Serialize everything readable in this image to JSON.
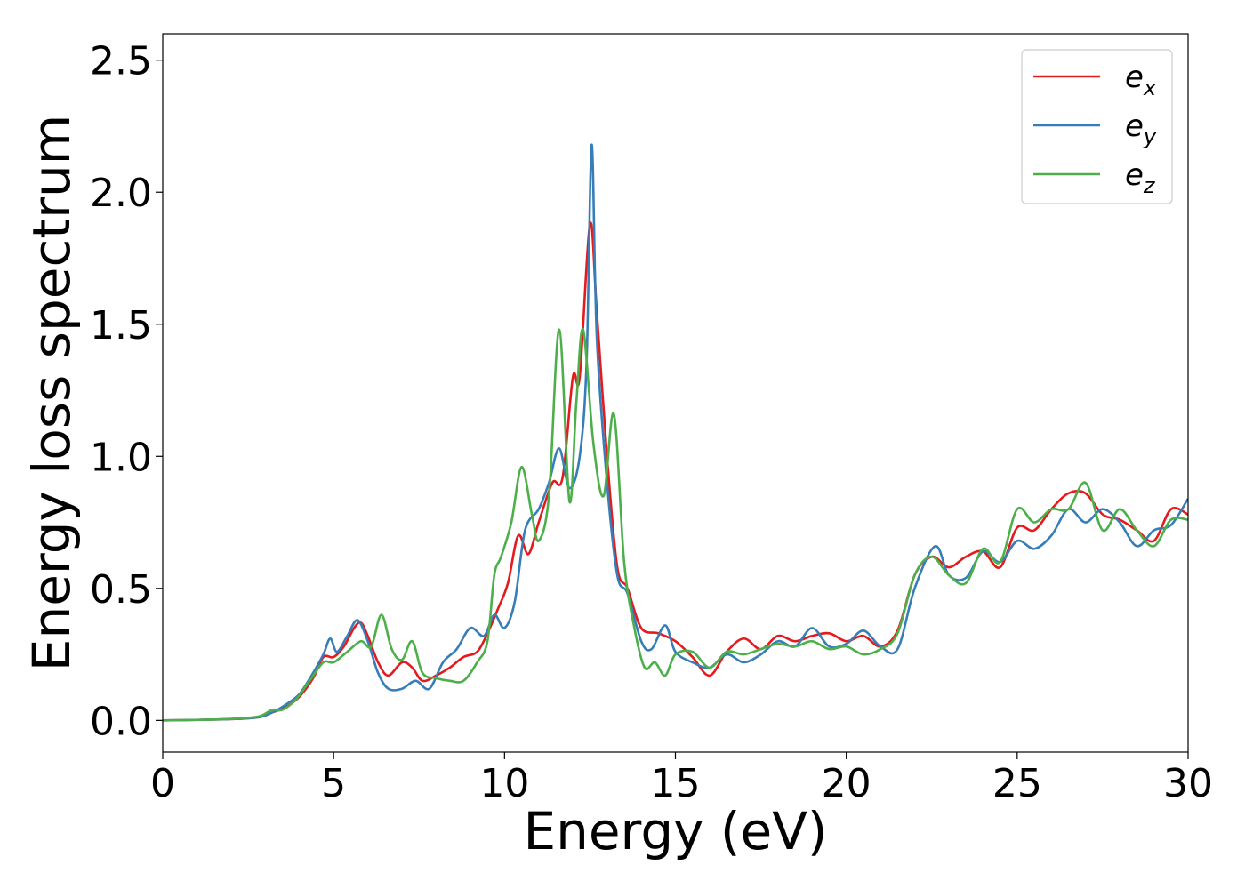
{
  "chart_data": {
    "type": "line",
    "title": "",
    "xlabel": "Energy (eV)",
    "ylabel": "Energy loss spectrum",
    "xlim": [
      0,
      30
    ],
    "ylim": [
      -0.12,
      2.6
    ],
    "xticks": [
      "0",
      "5",
      "10",
      "15",
      "20",
      "25",
      "30"
    ],
    "yticks": [
      "0.0",
      "0.5",
      "1.0",
      "1.5",
      "2.0",
      "2.5"
    ],
    "grid": false,
    "legend_position": "top-right",
    "series": [
      {
        "name_main": "e",
        "name_sub": "x",
        "color": "#e41a1c",
        "x": [
          0,
          1,
          2,
          2.8,
          3.2,
          3.6,
          4.0,
          4.4,
          4.7,
          5.0,
          5.3,
          5.6,
          5.8,
          6.0,
          6.3,
          6.6,
          7.0,
          7.3,
          7.6,
          8.0,
          8.4,
          8.8,
          9.2,
          9.5,
          9.8,
          10.1,
          10.4,
          10.7,
          11.0,
          11.4,
          11.7,
          12.0,
          12.2,
          12.5,
          12.7,
          13.0,
          13.3,
          13.6,
          14.0,
          14.5,
          15.0,
          15.5,
          16.0,
          16.5,
          17.0,
          17.5,
          18.0,
          18.5,
          19.0,
          19.5,
          20.0,
          20.5,
          21.0,
          21.5,
          22.0,
          22.5,
          23.0,
          23.5,
          24.0,
          24.5,
          25.0,
          25.5,
          26.0,
          26.5,
          27.0,
          27.5,
          28.0,
          28.5,
          29.0,
          29.5,
          30.0
        ],
        "y": [
          0,
          0.002,
          0.005,
          0.012,
          0.03,
          0.05,
          0.09,
          0.16,
          0.24,
          0.24,
          0.28,
          0.35,
          0.37,
          0.32,
          0.22,
          0.17,
          0.22,
          0.2,
          0.15,
          0.17,
          0.2,
          0.24,
          0.26,
          0.33,
          0.42,
          0.52,
          0.7,
          0.63,
          0.75,
          0.9,
          0.92,
          1.3,
          1.3,
          1.88,
          1.55,
          1.0,
          0.58,
          0.5,
          0.35,
          0.33,
          0.3,
          0.24,
          0.17,
          0.26,
          0.31,
          0.27,
          0.32,
          0.3,
          0.32,
          0.33,
          0.3,
          0.32,
          0.28,
          0.34,
          0.55,
          0.62,
          0.58,
          0.62,
          0.64,
          0.58,
          0.73,
          0.72,
          0.8,
          0.86,
          0.86,
          0.78,
          0.76,
          0.72,
          0.68,
          0.8,
          0.78
        ]
      },
      {
        "name_main": "e",
        "name_sub": "y",
        "color": "#377eb8",
        "x": [
          0,
          1,
          2,
          2.8,
          3.2,
          3.6,
          4.0,
          4.4,
          4.7,
          4.9,
          5.1,
          5.4,
          5.7,
          6.0,
          6.3,
          6.6,
          7.0,
          7.4,
          7.8,
          8.2,
          8.6,
          9.0,
          9.4,
          9.7,
          10.0,
          10.3,
          10.6,
          11.0,
          11.3,
          11.6,
          11.9,
          12.2,
          12.4,
          12.55,
          12.7,
          13.0,
          13.3,
          13.6,
          14.0,
          14.3,
          14.7,
          15.0,
          15.5,
          16.0,
          16.5,
          17.0,
          17.5,
          18.0,
          18.5,
          19.0,
          19.5,
          20.0,
          20.5,
          21.0,
          21.5,
          22.0,
          22.6,
          23.0,
          23.5,
          24.0,
          24.5,
          25.0,
          25.5,
          26.0,
          26.5,
          27.0,
          27.5,
          28.0,
          28.5,
          29.0,
          29.5,
          30.0
        ],
        "y": [
          0,
          0.002,
          0.005,
          0.012,
          0.03,
          0.06,
          0.1,
          0.18,
          0.25,
          0.31,
          0.26,
          0.32,
          0.38,
          0.3,
          0.18,
          0.12,
          0.12,
          0.15,
          0.12,
          0.22,
          0.27,
          0.35,
          0.32,
          0.4,
          0.35,
          0.45,
          0.72,
          0.8,
          0.9,
          1.03,
          0.88,
          1.0,
          1.35,
          2.18,
          1.45,
          0.9,
          0.55,
          0.48,
          0.3,
          0.27,
          0.36,
          0.26,
          0.22,
          0.2,
          0.25,
          0.22,
          0.25,
          0.3,
          0.28,
          0.35,
          0.28,
          0.29,
          0.34,
          0.28,
          0.27,
          0.5,
          0.66,
          0.55,
          0.54,
          0.64,
          0.6,
          0.68,
          0.65,
          0.7,
          0.8,
          0.75,
          0.8,
          0.75,
          0.66,
          0.72,
          0.74,
          0.84
        ]
      },
      {
        "name_main": "e",
        "name_sub": "z",
        "color": "#4daf4a",
        "x": [
          0,
          1,
          2,
          2.8,
          3.2,
          3.5,
          3.9,
          4.3,
          4.7,
          5.0,
          5.4,
          5.8,
          6.1,
          6.4,
          6.7,
          7.0,
          7.3,
          7.6,
          8.0,
          8.4,
          8.8,
          9.2,
          9.5,
          9.7,
          9.9,
          10.2,
          10.5,
          10.8,
          11.0,
          11.3,
          11.6,
          11.9,
          12.1,
          12.3,
          12.6,
          12.9,
          13.2,
          13.5,
          13.8,
          14.1,
          14.4,
          14.7,
          15.0,
          15.5,
          16.0,
          16.5,
          17.0,
          17.5,
          18.0,
          18.5,
          19.0,
          19.5,
          20.0,
          20.5,
          21.0,
          21.5,
          22.0,
          22.5,
          23.0,
          23.5,
          24.0,
          24.5,
          25.0,
          25.5,
          26.0,
          26.5,
          27.0,
          27.5,
          28.0,
          28.5,
          29.0,
          29.5,
          30.0
        ],
        "y": [
          0,
          0.002,
          0.006,
          0.015,
          0.04,
          0.04,
          0.08,
          0.15,
          0.22,
          0.22,
          0.26,
          0.3,
          0.28,
          0.4,
          0.27,
          0.23,
          0.3,
          0.18,
          0.16,
          0.15,
          0.15,
          0.22,
          0.3,
          0.55,
          0.62,
          0.75,
          0.96,
          0.78,
          0.68,
          0.85,
          1.48,
          0.83,
          1.2,
          1.48,
          1.05,
          0.85,
          1.16,
          0.6,
          0.35,
          0.2,
          0.22,
          0.17,
          0.25,
          0.26,
          0.2,
          0.26,
          0.25,
          0.27,
          0.29,
          0.28,
          0.3,
          0.27,
          0.28,
          0.25,
          0.27,
          0.33,
          0.55,
          0.62,
          0.55,
          0.52,
          0.65,
          0.6,
          0.8,
          0.75,
          0.8,
          0.8,
          0.9,
          0.72,
          0.8,
          0.72,
          0.66,
          0.76,
          0.76
        ]
      }
    ]
  }
}
